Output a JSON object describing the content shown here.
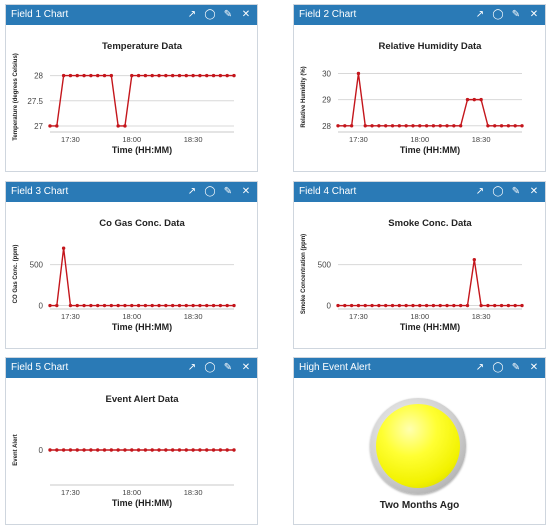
{
  "widgets": [
    {
      "header": "Field 1 Chart"
    },
    {
      "header": "Field 2 Chart"
    },
    {
      "header": "Field 3 Chart"
    },
    {
      "header": "Field 4 Chart"
    },
    {
      "header": "Field 5 Chart"
    },
    {
      "header": "High Event Alert"
    }
  ],
  "tools": {
    "open": "↗",
    "comment": "◯",
    "edit": "✎",
    "close": "✕"
  },
  "lamp": {
    "label": "Two Months Ago",
    "state": "on",
    "color": "#ffff00"
  },
  "chart_data": [
    {
      "type": "line",
      "title": "Temperature Data",
      "ylabel": "Temperature (degrees Celsius)",
      "xlabel": "Time (HH:MM)",
      "ylim": [
        26.9,
        28.25
      ],
      "yticks": [
        27,
        27.5,
        28
      ],
      "ytick_labels": [
        "27",
        "27.5",
        "28"
      ],
      "xlim": [
        0,
        27
      ],
      "xticks": [
        3,
        12,
        21
      ],
      "xtick_labels": [
        "17:30",
        "18:00",
        "18:30"
      ],
      "color": "#c4161c",
      "values": [
        27,
        27,
        28,
        28,
        28,
        28,
        28,
        28,
        28,
        28,
        27,
        27,
        28,
        28,
        28,
        28,
        28,
        28,
        28,
        28,
        28,
        28,
        28,
        28,
        28,
        28,
        28,
        28
      ]
    },
    {
      "type": "line",
      "title": "Relative Humidity Data",
      "ylabel": "Relative Humidity (%)",
      "xlabel": "Time (HH:MM)",
      "ylim": [
        27.8,
        30.4
      ],
      "yticks": [
        28,
        29,
        30
      ],
      "ytick_labels": [
        "28",
        "29",
        "30"
      ],
      "xlim": [
        0,
        27
      ],
      "xticks": [
        3,
        12,
        21
      ],
      "xtick_labels": [
        "17:30",
        "18:00",
        "18:30"
      ],
      "color": "#c4161c",
      "values": [
        28,
        28,
        28,
        30,
        28,
        28,
        28,
        28,
        28,
        28,
        28,
        28,
        28,
        28,
        28,
        28,
        28,
        28,
        28,
        29,
        29,
        29,
        28,
        28,
        28,
        28,
        28,
        28
      ]
    },
    {
      "type": "line",
      "title": "Co Gas Conc. Data",
      "ylabel": "CO Gas Conc. (ppm)",
      "xlabel": "Time (HH:MM)",
      "ylim": [
        -30,
        800
      ],
      "yticks": [
        0,
        500
      ],
      "ytick_labels": [
        "0",
        "500"
      ],
      "xlim": [
        0,
        27
      ],
      "xticks": [
        3,
        12,
        21
      ],
      "xtick_labels": [
        "17:30",
        "18:00",
        "18:30"
      ],
      "color": "#c4161c",
      "values": [
        0,
        0,
        700,
        0,
        0,
        0,
        0,
        0,
        0,
        0,
        0,
        0,
        0,
        0,
        0,
        0,
        0,
        0,
        0,
        0,
        0,
        0,
        0,
        0,
        0,
        0,
        0,
        0
      ]
    },
    {
      "type": "line",
      "title": "Smoke Conc. Data",
      "ylabel": "Smoke Concentration (ppm)",
      "xlabel": "Time (HH:MM)",
      "ylim": [
        -30,
        800
      ],
      "yticks": [
        0,
        500
      ],
      "ytick_labels": [
        "0",
        "500"
      ],
      "xlim": [
        0,
        27
      ],
      "xticks": [
        3,
        12,
        21
      ],
      "xtick_labels": [
        "17:30",
        "18:00",
        "18:30"
      ],
      "color": "#c4161c",
      "values": [
        0,
        0,
        0,
        0,
        0,
        0,
        0,
        0,
        0,
        0,
        0,
        0,
        0,
        0,
        0,
        0,
        0,
        0,
        0,
        0,
        560,
        0,
        0,
        0,
        0,
        0,
        0,
        0
      ]
    },
    {
      "type": "line",
      "title": "Event Alert Data",
      "ylabel": "Event Alert",
      "xlabel": "Time (HH:MM)",
      "ylim": [
        -1,
        1
      ],
      "yticks": [
        0
      ],
      "ytick_labels": [
        "0"
      ],
      "xlim": [
        0,
        27
      ],
      "xticks": [
        3,
        12,
        21
      ],
      "xtick_labels": [
        "17:30",
        "18:00",
        "18:30"
      ],
      "color": "#c4161c",
      "values": [
        0,
        0,
        0,
        0,
        0,
        0,
        0,
        0,
        0,
        0,
        0,
        0,
        0,
        0,
        0,
        0,
        0,
        0,
        0,
        0,
        0,
        0,
        0,
        0,
        0,
        0,
        0,
        0
      ]
    }
  ]
}
